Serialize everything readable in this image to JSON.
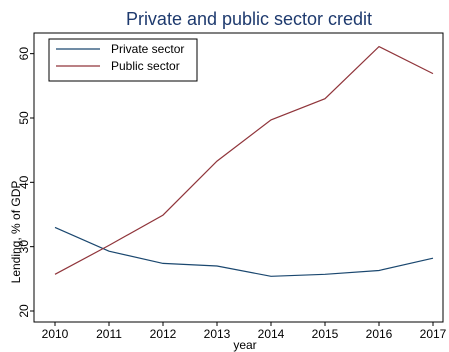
{
  "chart_data": {
    "type": "line",
    "title": "Private and public sector credit",
    "xlabel": "year",
    "ylabel": "Lending, % of GDP",
    "x": [
      2010,
      2011,
      2012,
      2013,
      2014,
      2015,
      2016,
      2017
    ],
    "xlim": [
      2010,
      2017
    ],
    "ylim": [
      20,
      62
    ],
    "yticks": [
      20,
      30,
      40,
      50,
      60
    ],
    "grid": false,
    "legend_position": "top-left",
    "series": [
      {
        "name": "Private sector",
        "color": "#1a476f",
        "values": [
          33.0,
          29.3,
          27.4,
          27.0,
          25.4,
          25.7,
          26.3,
          28.2
        ]
      },
      {
        "name": "Public sector",
        "color": "#90353b",
        "values": [
          25.7,
          30.2,
          34.9,
          43.3,
          49.7,
          53.0,
          61.1,
          56.9
        ]
      }
    ],
    "title_color": "#1e3a6e"
  }
}
